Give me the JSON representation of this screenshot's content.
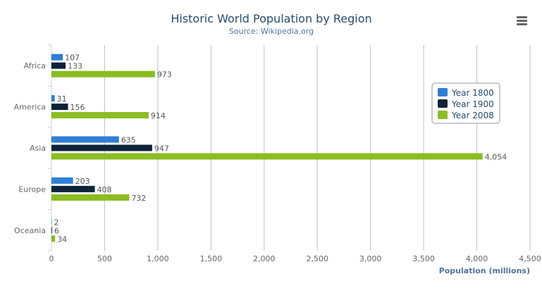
{
  "menu_icon": "hamburger-menu-icon",
  "chart_data": {
    "type": "bar",
    "orientation": "horizontal",
    "title": "Historic World Population by Region",
    "subtitle": "Source: Wikipedia.org",
    "xlabel": "Population (millions)",
    "ylabel": "",
    "categories": [
      "Africa",
      "America",
      "Asia",
      "Europe",
      "Oceania"
    ],
    "series": [
      {
        "name": "Year 1800",
        "color": "#2f7ed8",
        "values": [
          107,
          31,
          635,
          203,
          2
        ]
      },
      {
        "name": "Year 1900",
        "color": "#0d233a",
        "values": [
          133,
          156,
          947,
          408,
          6
        ]
      },
      {
        "name": "Year 2008",
        "color": "#8bbc21",
        "values": [
          973,
          914,
          4054,
          732,
          34
        ]
      }
    ],
    "xlim": [
      0,
      4500
    ],
    "ticks": [
      "0",
      "500",
      "1,000",
      "1,500",
      "2,000",
      "2,500",
      "3,000",
      "3,500",
      "4,000",
      "4,500"
    ],
    "grid": true,
    "legend": "right"
  }
}
